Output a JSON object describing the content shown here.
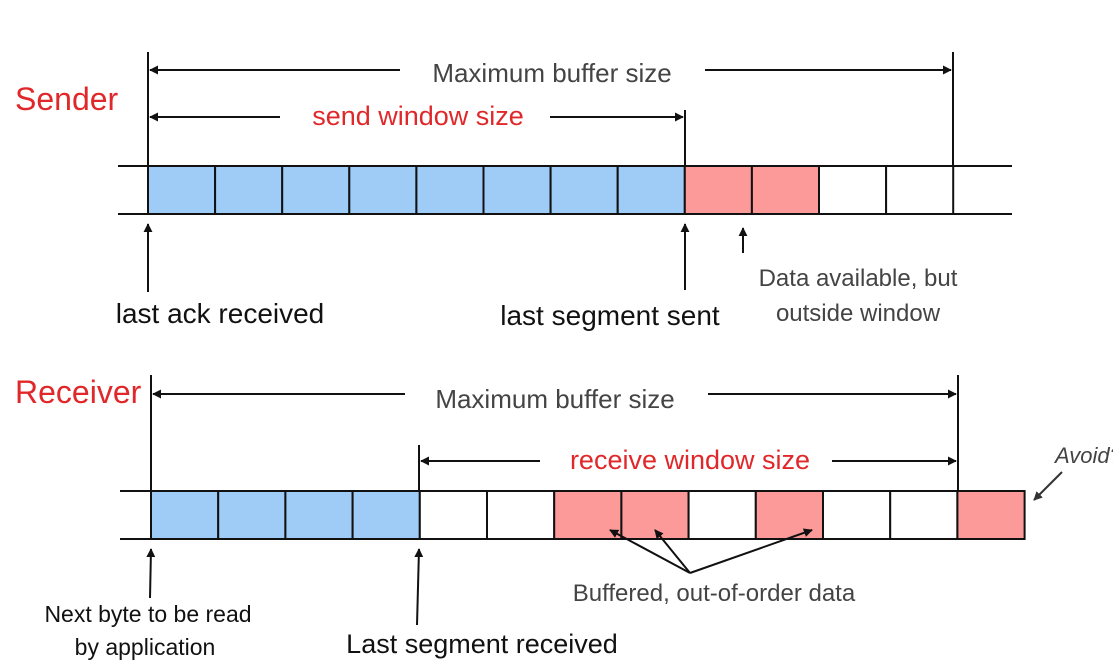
{
  "colors": {
    "label_red": "#e0282a",
    "filled_blue": "#9fcbf7",
    "filled_red": "#fc9a9a",
    "empty": "#ffffff",
    "line": "#111111",
    "annotation_gray": "#444444"
  },
  "sender": {
    "title": "Sender",
    "max_buffer_label": "Maximum buffer size",
    "window_label": "send window size",
    "cells": [
      "blue",
      "blue",
      "blue",
      "blue",
      "blue",
      "blue",
      "blue",
      "blue",
      "red",
      "red",
      "empty",
      "empty"
    ],
    "pointer_last_ack": "last ack received",
    "pointer_last_sent": "last segment sent",
    "pointer_outside_1": "Data available, but",
    "pointer_outside_2": "outside window"
  },
  "receiver": {
    "title": "Receiver",
    "max_buffer_label": "Maximum buffer size",
    "window_label": "receive window size",
    "cells": [
      "blue",
      "blue",
      "blue",
      "blue",
      "empty",
      "empty",
      "red",
      "red",
      "empty",
      "red",
      "empty",
      "empty",
      "red"
    ],
    "avoid_label": "Avoid?",
    "buffered_label": "Buffered, out-of-order data",
    "pointer_next_byte_1": "Next byte to be read",
    "pointer_next_byte_2": "by application",
    "pointer_last_received": "Last segment received"
  }
}
